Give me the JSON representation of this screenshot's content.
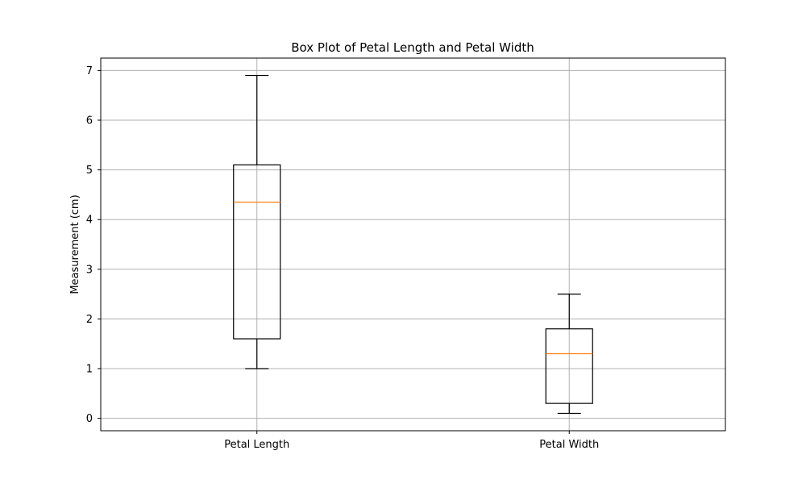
{
  "chart_data": {
    "type": "box",
    "title": "Box Plot of Petal Length and Petal Width",
    "xlabel": "",
    "ylabel": "Measurement (cm)",
    "categories": [
      "Petal Length",
      "Petal Width"
    ],
    "ylim": [
      -0.25,
      7.25
    ],
    "yticks": [
      0,
      1,
      2,
      3,
      4,
      5,
      6,
      7
    ],
    "grid": true,
    "boxes": [
      {
        "category": "Petal Length",
        "whisker_low": 1.0,
        "q1": 1.6,
        "median": 4.35,
        "q3": 5.1,
        "whisker_high": 6.9
      },
      {
        "category": "Petal Width",
        "whisker_low": 0.1,
        "q1": 0.3,
        "median": 1.3,
        "q3": 1.8,
        "whisker_high": 2.5
      }
    ],
    "colors": {
      "box": "#000000",
      "median": "#ff7f0e",
      "grid": "#b0b0b0"
    }
  }
}
